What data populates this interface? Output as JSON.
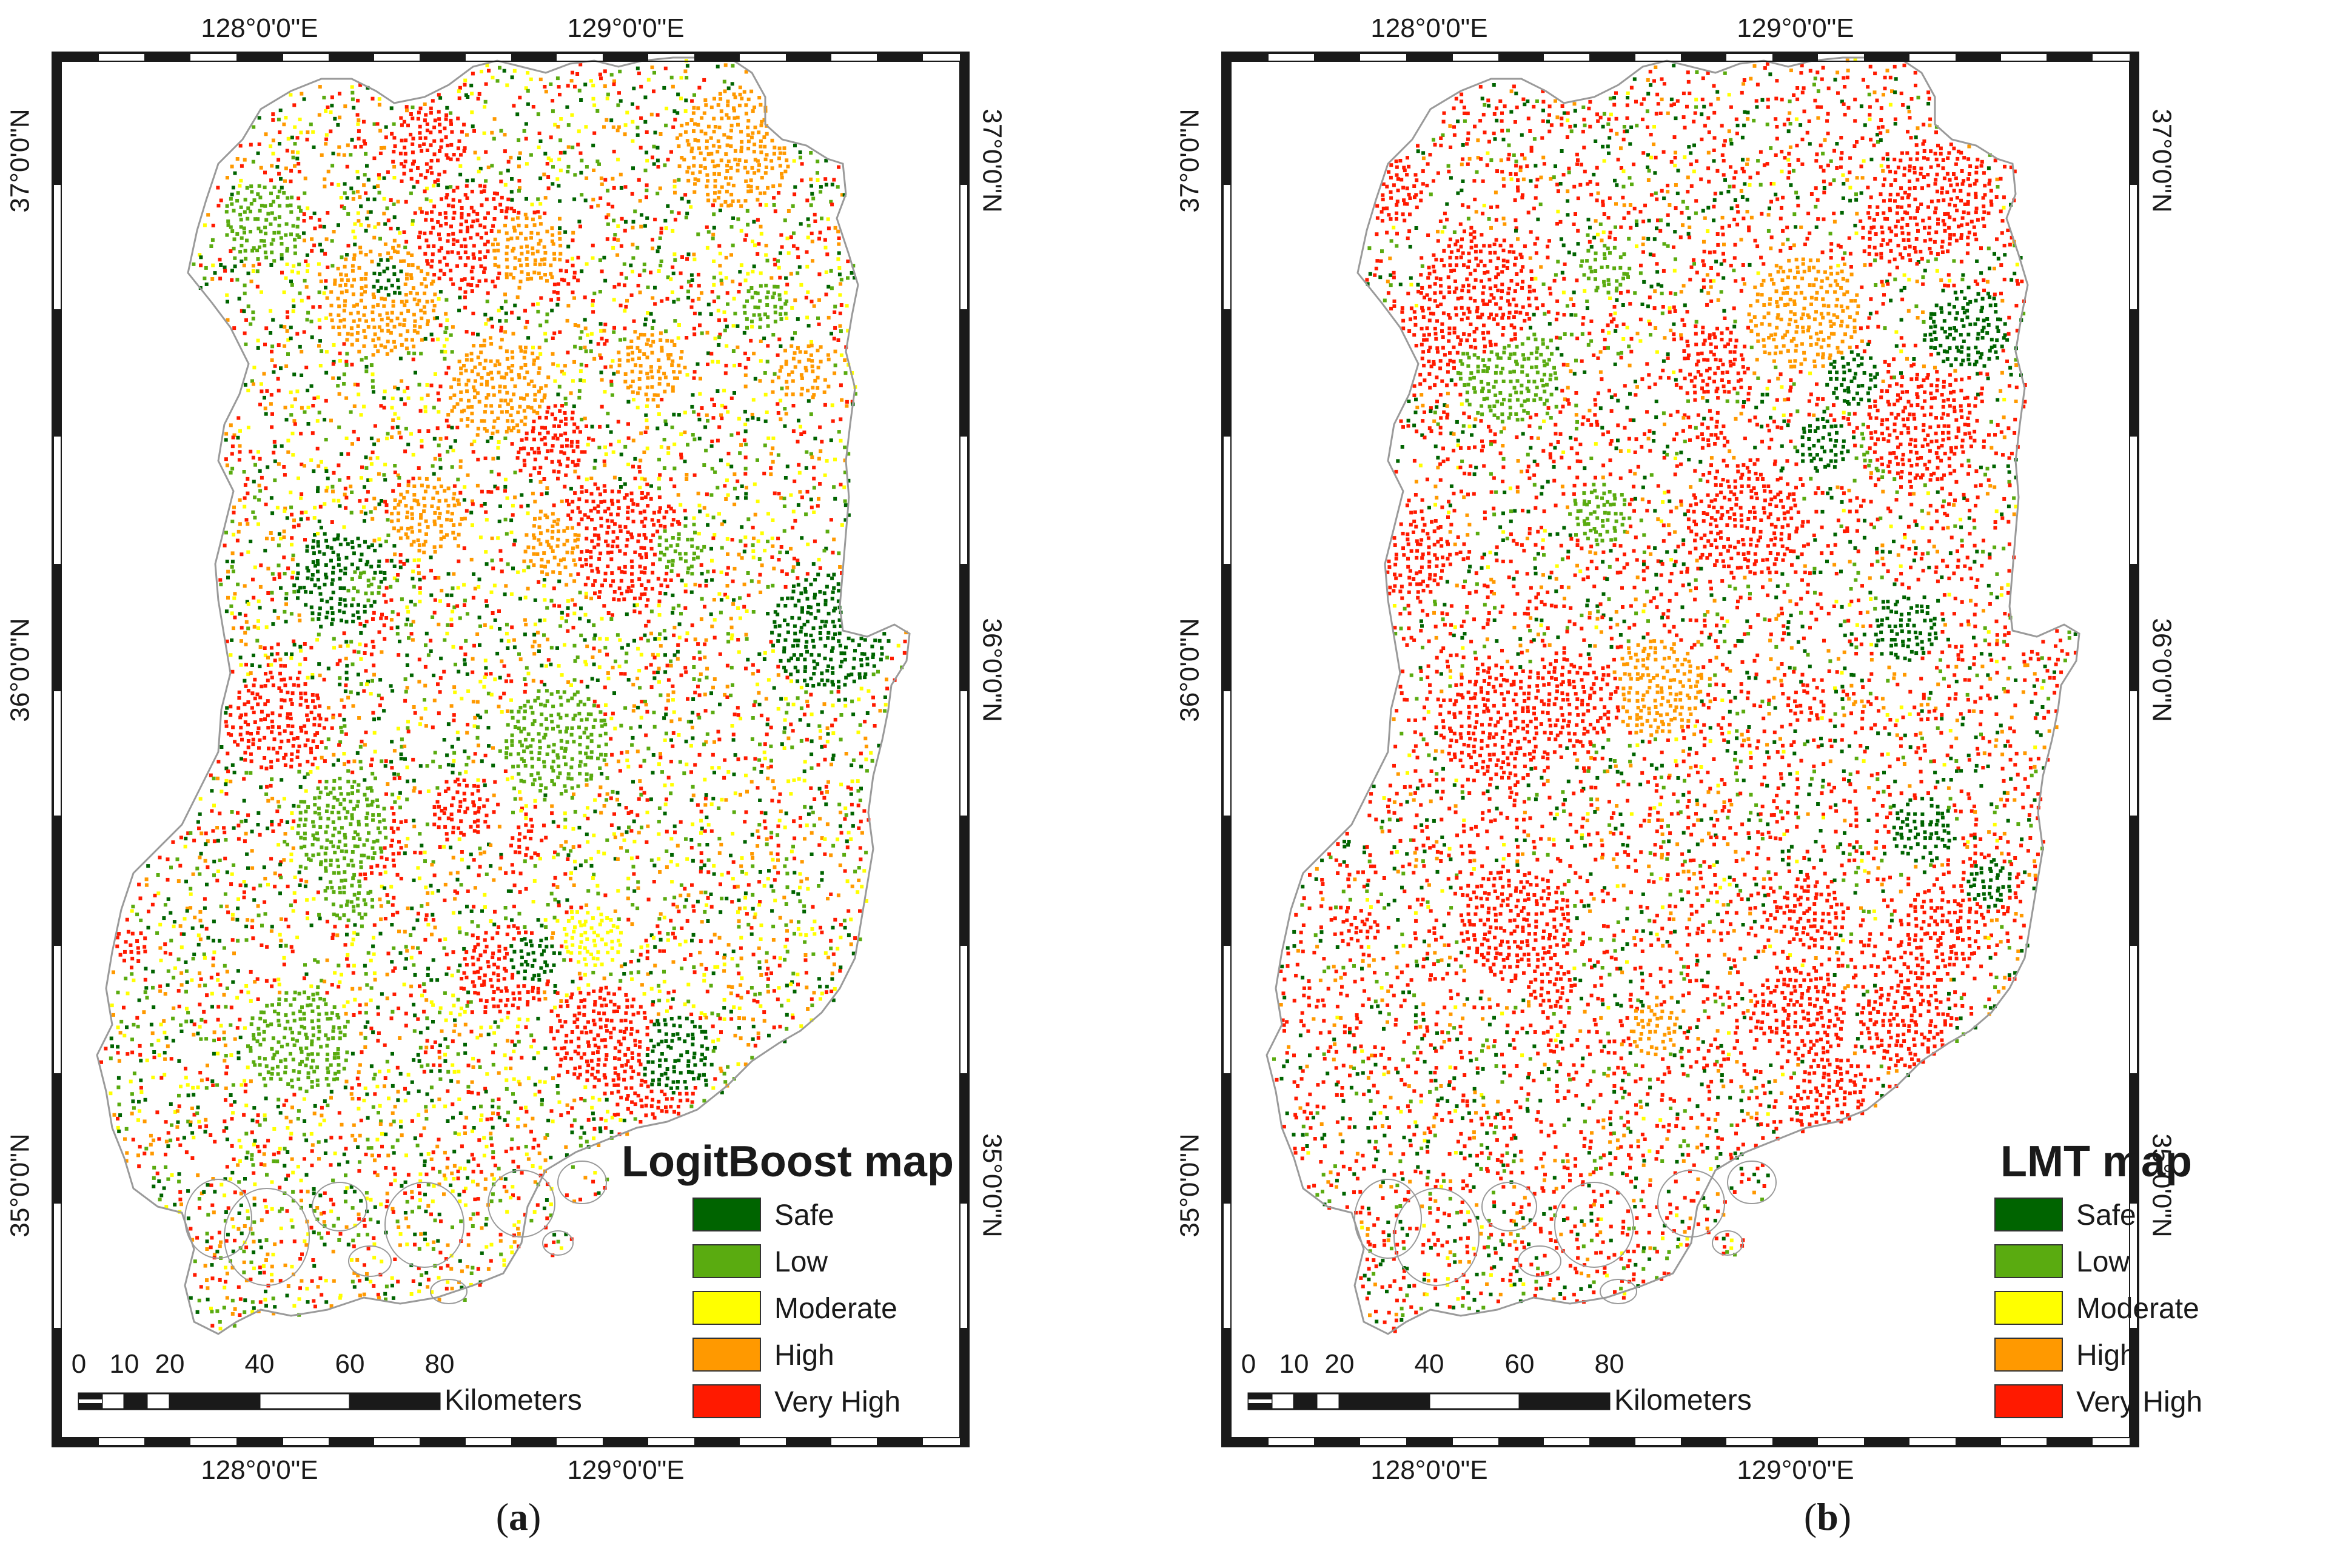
{
  "colors": {
    "safe": "#006400",
    "low": "#5aab10",
    "moderate": "#ffff00",
    "high": "#ff9900",
    "very_high": "#ff1a00",
    "frame": "#1a1a1a",
    "outline": "#9a9a9a"
  },
  "coords": {
    "top": [
      "128°0'0\"E",
      "129°0'0\"E"
    ],
    "bottom": [
      "128°0'0\"E",
      "129°0'0\"E"
    ],
    "left": [
      "37°0'0\"N",
      "36°0'0\"N",
      "35°0'0\"N"
    ],
    "right": [
      "37°0'0\"N",
      "36°0'0\"N",
      "35°0'0\"N"
    ]
  },
  "scalebar": {
    "labels": [
      "0",
      "10",
      "20",
      "40",
      "60",
      "80"
    ],
    "unit": "Kilometers"
  },
  "legend_classes": [
    "Safe",
    "Low",
    "Moderate",
    "High",
    "Very High"
  ],
  "panels": [
    {
      "title": "LogitBoost map",
      "caption_letter": "a",
      "class_mix": {
        "safe": 0.2,
        "low": 0.17,
        "moderate": 0.19,
        "high": 0.17,
        "very_high": 0.27
      }
    },
    {
      "title": "LMT map",
      "caption_letter": "b",
      "class_mix": {
        "safe": 0.17,
        "low": 0.1,
        "moderate": 0.05,
        "high": 0.12,
        "very_high": 0.56
      }
    }
  ]
}
